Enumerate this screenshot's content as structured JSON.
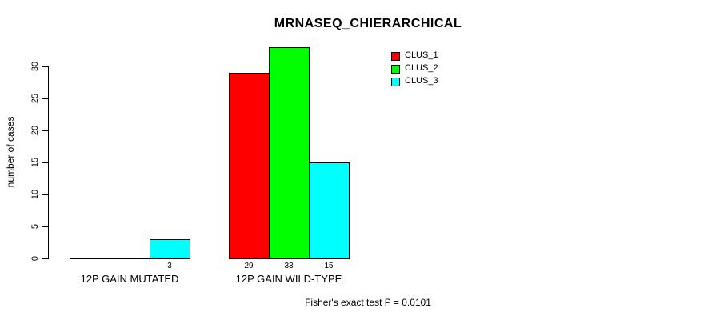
{
  "title": "MRNASEQ_CHIERARCHICAL",
  "footer": "Fisher's exact test P = 0.0101",
  "legend": {
    "entries": [
      "CLUS_1",
      "CLUS_2",
      "CLUS_3"
    ],
    "position": "top-right"
  },
  "colors": {
    "clus_1": "#FF0000",
    "clus_2": "#00FF00",
    "clus_3": "#00FFFF",
    "axis": "#000000",
    "background": "#FFFFFF"
  },
  "chart_data": {
    "type": "bar",
    "title": "MRNASEQ_CHIERARCHICAL",
    "xlabel": "",
    "ylabel": "number of cases",
    "categories": [
      "12P GAIN MUTATED",
      "12P GAIN WILD-TYPE"
    ],
    "series": [
      {
        "name": "CLUS_1",
        "color": "#FF0000",
        "values": [
          0,
          29
        ]
      },
      {
        "name": "CLUS_2",
        "color": "#00FF00",
        "values": [
          0,
          33
        ]
      },
      {
        "name": "CLUS_3",
        "color": "#00FFFF",
        "values": [
          3,
          15
        ]
      }
    ],
    "bar_value_labels": [
      [
        null,
        "29"
      ],
      [
        null,
        "33"
      ],
      [
        "3",
        "15"
      ]
    ],
    "yticks": [
      0,
      5,
      10,
      15,
      20,
      25,
      30
    ],
    "ylim": [
      0,
      33
    ],
    "grid": false,
    "legend_position": "top-right",
    "annotation": "Fisher's exact test P = 0.0101"
  }
}
